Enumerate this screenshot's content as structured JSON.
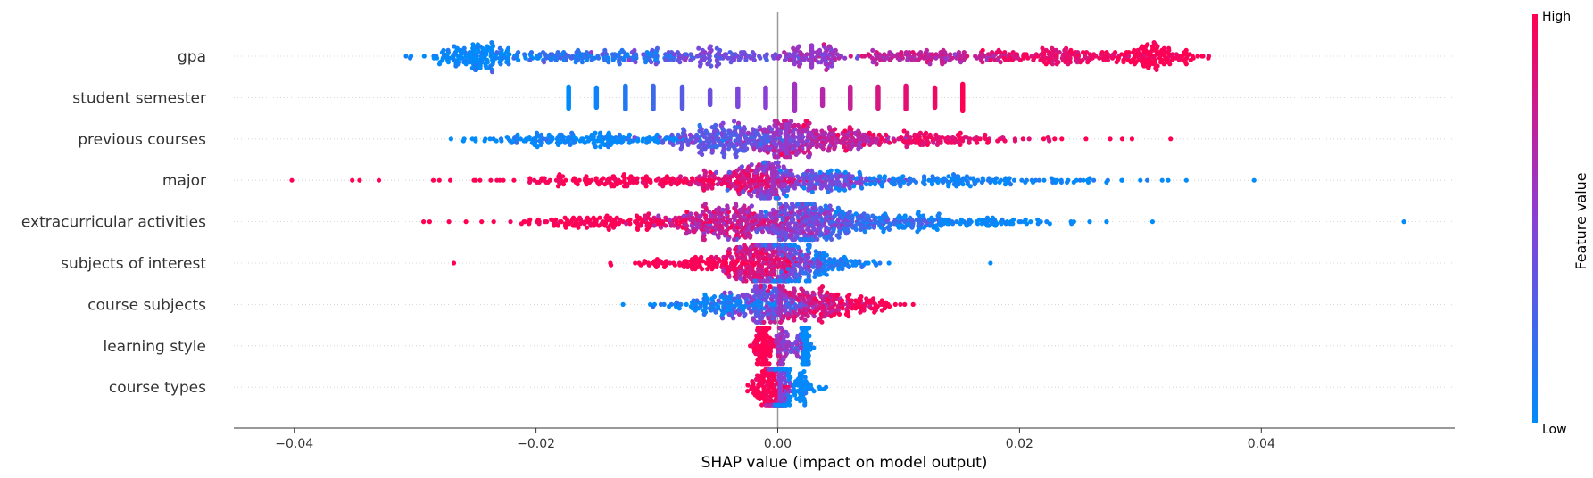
{
  "chart_data": {
    "type": "scatter",
    "subtype": "shap-beeswarm-summary",
    "title": "",
    "xlabel": "SHAP value (impact on model output)",
    "ylabel": "",
    "xlim": [
      -0.045,
      0.056
    ],
    "xticks": [
      -0.04,
      -0.02,
      0.0,
      0.02,
      0.04
    ],
    "xtick_labels": [
      "−0.04",
      "−0.02",
      "0.00",
      "0.02",
      "0.04"
    ],
    "zero_line": 0.0,
    "grid": "horizontal dotted row guides",
    "legend": "colorbar at right",
    "colorbar": {
      "title": "Feature value",
      "high_label": "High",
      "low_label": "Low",
      "low_color": "#008bfb",
      "mid_color": "#8a3fd6",
      "high_color": "#ff0052"
    },
    "features": [
      {
        "name": "gpa",
        "clusters": [
          {
            "x": -0.025,
            "s": 0.0022,
            "n": 160,
            "f": 0.0,
            "fs": 0.06
          },
          {
            "x": -0.015,
            "s": 0.004,
            "n": 140,
            "f": 0.15,
            "fs": 0.08
          },
          {
            "x": -0.005,
            "s": 0.004,
            "n": 120,
            "f": 0.4,
            "fs": 0.08
          },
          {
            "x": 0.003,
            "s": 0.0015,
            "n": 80,
            "f": 0.55,
            "fs": 0.08
          },
          {
            "x": 0.012,
            "s": 0.004,
            "n": 140,
            "f": 0.72,
            "fs": 0.08
          },
          {
            "x": 0.024,
            "s": 0.004,
            "n": 150,
            "f": 0.9,
            "fs": 0.06
          },
          {
            "x": 0.031,
            "s": 0.0018,
            "n": 120,
            "f": 1.0,
            "fs": 0.04
          }
        ],
        "outliers": [
          {
            "x": -0.0282,
            "f": 0.0
          },
          {
            "x": 0.0338,
            "f": 1.0
          }
        ],
        "vlines": [
          {
            "x": 0.0028,
            "f": 0.55,
            "h": 0.6
          }
        ]
      },
      {
        "name": "student semester",
        "vlines": [
          {
            "x": -0.0173,
            "f": 0.0,
            "h": 0.6
          },
          {
            "x": -0.015,
            "f": 0.05,
            "h": 0.55
          },
          {
            "x": -0.0126,
            "f": 0.12,
            "h": 0.65
          },
          {
            "x": -0.0103,
            "f": 0.22,
            "h": 0.65
          },
          {
            "x": -0.0079,
            "f": 0.32,
            "h": 0.6
          },
          {
            "x": -0.0056,
            "f": 0.4,
            "h": 0.4
          },
          {
            "x": -0.0033,
            "f": 0.45,
            "h": 0.5
          },
          {
            "x": -0.001,
            "f": 0.5,
            "h": 0.55
          },
          {
            "x": 0.0014,
            "f": 0.6,
            "h": 0.75
          },
          {
            "x": 0.0037,
            "f": 0.68,
            "h": 0.45
          },
          {
            "x": 0.006,
            "f": 0.75,
            "h": 0.6
          },
          {
            "x": 0.0083,
            "f": 0.82,
            "h": 0.6
          },
          {
            "x": 0.0106,
            "f": 0.88,
            "h": 0.65
          },
          {
            "x": 0.013,
            "f": 0.94,
            "h": 0.55
          },
          {
            "x": 0.0153,
            "f": 1.0,
            "h": 0.75
          }
        ]
      },
      {
        "name": "previous courses",
        "clusters": [
          {
            "x": -0.015,
            "s": 0.005,
            "n": 180,
            "f": 0.0,
            "fs": 0.08
          },
          {
            "x": -0.004,
            "s": 0.0025,
            "n": 220,
            "f": 0.35,
            "fs": 0.1
          },
          {
            "x": 0.0005,
            "s": 0.0012,
            "n": 120,
            "f": 0.55,
            "fs": 0.1
          },
          {
            "x": 0.005,
            "s": 0.003,
            "n": 180,
            "f": 0.7,
            "fs": 0.08
          },
          {
            "x": 0.013,
            "s": 0.004,
            "n": 120,
            "f": 0.92,
            "fs": 0.06
          }
        ],
        "outliers": [
          {
            "x": -0.026,
            "f": 0.0
          },
          {
            "x": -0.025,
            "f": 0.0
          },
          {
            "x": -0.0238,
            "f": 0.0
          },
          {
            "x": -0.022,
            "f": 0.0
          },
          {
            "x": 0.022,
            "f": 1.0
          },
          {
            "x": 0.0235,
            "f": 1.0
          },
          {
            "x": 0.0255,
            "f": 1.0
          },
          {
            "x": 0.0275,
            "f": 1.0
          },
          {
            "x": 0.0285,
            "f": 1.0
          },
          {
            "x": 0.0293,
            "f": 1.0
          },
          {
            "x": 0.0325,
            "f": 1.0
          }
        ],
        "vlines": [
          {
            "x": 0.0007,
            "f": 0.55,
            "h": 0.8
          }
        ]
      },
      {
        "name": "major",
        "clusters": [
          {
            "x": -0.012,
            "s": 0.006,
            "n": 160,
            "f": 1.0,
            "fs": 0.06
          },
          {
            "x": -0.003,
            "s": 0.0025,
            "n": 140,
            "f": 0.85,
            "fs": 0.1
          },
          {
            "x": -0.0005,
            "s": 0.001,
            "n": 80,
            "f": 0.6,
            "fs": 0.1
          },
          {
            "x": 0.004,
            "s": 0.003,
            "n": 160,
            "f": 0.4,
            "fs": 0.1
          },
          {
            "x": 0.014,
            "s": 0.006,
            "n": 150,
            "f": 0.05,
            "fs": 0.06
          }
        ],
        "outliers": [
          {
            "x": -0.0402,
            "f": 1.0
          },
          {
            "x": -0.0352,
            "f": 1.0
          },
          {
            "x": -0.0346,
            "f": 1.0
          },
          {
            "x": -0.033,
            "f": 1.0
          },
          {
            "x": -0.0285,
            "f": 1.0
          },
          {
            "x": -0.028,
            "f": 1.0
          },
          {
            "x": -0.025,
            "f": 1.0
          },
          {
            "x": -0.023,
            "f": 1.0
          },
          {
            "x": -0.0205,
            "f": 1.0
          },
          {
            "x": 0.0245,
            "f": 0.0
          },
          {
            "x": 0.0258,
            "f": 0.0
          },
          {
            "x": 0.0272,
            "f": 0.0
          },
          {
            "x": 0.0285,
            "f": 0.0
          },
          {
            "x": 0.03,
            "f": 0.0
          },
          {
            "x": 0.0318,
            "f": 0.0
          },
          {
            "x": 0.0323,
            "f": 0.0
          },
          {
            "x": 0.0338,
            "f": 0.0
          },
          {
            "x": 0.0394,
            "f": 0.0
          }
        ],
        "vlines": [
          {
            "x": -0.0004,
            "f": 0.6,
            "h": 0.75
          }
        ]
      },
      {
        "name": "extracurricular activities",
        "clusters": [
          {
            "x": -0.013,
            "s": 0.004,
            "n": 140,
            "f": 1.0,
            "fs": 0.06
          },
          {
            "x": -0.004,
            "s": 0.0025,
            "n": 260,
            "f": 0.75,
            "fs": 0.12
          },
          {
            "x": 0.002,
            "s": 0.002,
            "n": 260,
            "f": 0.45,
            "fs": 0.12
          },
          {
            "x": 0.008,
            "s": 0.003,
            "n": 160,
            "f": 0.2,
            "fs": 0.1
          },
          {
            "x": 0.015,
            "s": 0.004,
            "n": 90,
            "f": 0.02,
            "fs": 0.04
          }
        ],
        "outliers": [
          {
            "x": -0.0293,
            "f": 1.0
          },
          {
            "x": -0.0288,
            "f": 1.0
          },
          {
            "x": -0.0272,
            "f": 1.0
          },
          {
            "x": -0.0258,
            "f": 1.0
          },
          {
            "x": -0.0245,
            "f": 1.0
          },
          {
            "x": -0.0235,
            "f": 1.0
          },
          {
            "x": -0.0212,
            "f": 1.0
          },
          {
            "x": -0.0205,
            "f": 1.0
          },
          {
            "x": -0.0198,
            "f": 1.0
          },
          {
            "x": -0.0185,
            "f": 1.0
          },
          {
            "x": -0.0168,
            "f": 1.0
          },
          {
            "x": -0.0165,
            "f": 1.0
          },
          {
            "x": 0.0185,
            "f": 0.0
          },
          {
            "x": 0.0195,
            "f": 0.0
          },
          {
            "x": 0.0205,
            "f": 0.0
          },
          {
            "x": 0.0215,
            "f": 0.0
          },
          {
            "x": 0.0225,
            "f": 0.0
          },
          {
            "x": 0.0245,
            "f": 0.0
          },
          {
            "x": 0.0258,
            "f": 0.0
          },
          {
            "x": 0.0272,
            "f": 0.0
          },
          {
            "x": 0.031,
            "f": 0.0
          },
          {
            "x": 0.0518,
            "f": 0.0
          }
        ]
      },
      {
        "name": "subjects of interest",
        "clusters": [
          {
            "x": -0.006,
            "s": 0.003,
            "n": 120,
            "f": 1.0,
            "fs": 0.06
          },
          {
            "x": -0.0015,
            "s": 0.0015,
            "n": 200,
            "f": 0.85,
            "fs": 0.1
          },
          {
            "x": 0.001,
            "s": 0.0015,
            "n": 160,
            "f": 0.45,
            "fs": 0.12
          },
          {
            "x": 0.004,
            "s": 0.002,
            "n": 100,
            "f": 0.08,
            "fs": 0.06
          }
        ],
        "outliers": [
          {
            "x": -0.0268,
            "f": 1.0
          },
          {
            "x": -0.0138,
            "f": 1.0
          },
          {
            "x": -0.0118,
            "f": 1.0
          },
          {
            "x": -0.011,
            "f": 1.0
          },
          {
            "x": 0.0075,
            "f": 0.0
          },
          {
            "x": 0.0092,
            "f": 0.0
          },
          {
            "x": 0.0176,
            "f": 0.0
          }
        ]
      },
      {
        "name": "course subjects",
        "clusters": [
          {
            "x": -0.005,
            "s": 0.0025,
            "n": 140,
            "f": 0.05,
            "fs": 0.08
          },
          {
            "x": -0.0005,
            "s": 0.0015,
            "n": 160,
            "f": 0.4,
            "fs": 0.12
          },
          {
            "x": 0.003,
            "s": 0.002,
            "n": 160,
            "f": 0.8,
            "fs": 0.1
          },
          {
            "x": 0.007,
            "s": 0.0015,
            "n": 60,
            "f": 1.0,
            "fs": 0.04
          }
        ],
        "outliers": [
          {
            "x": -0.0128,
            "f": 0.0
          },
          {
            "x": -0.0102,
            "f": 0.0
          },
          {
            "x": -0.009,
            "f": 0.0
          },
          {
            "x": 0.0105,
            "f": 1.0
          },
          {
            "x": 0.0112,
            "f": 1.0
          }
        ],
        "vlines": [
          {
            "x": 0.0002,
            "f": 0.6,
            "h": 0.55
          }
        ]
      },
      {
        "name": "learning style",
        "clusters": [
          {
            "x": -0.0012,
            "s": 0.0004,
            "n": 110,
            "f": 1.0,
            "fs": 0.05
          },
          {
            "x": 0.0003,
            "s": 0.0003,
            "n": 50,
            "f": 0.6,
            "fs": 0.1
          },
          {
            "x": 0.0016,
            "s": 0.0003,
            "n": 30,
            "f": 0.45,
            "fs": 0.1
          },
          {
            "x": 0.0023,
            "s": 0.0002,
            "n": 80,
            "f": 0.0,
            "fs": 0.04
          }
        ],
        "vlines": [
          {
            "x": -0.0012,
            "f": 1.0,
            "h": 0.75
          },
          {
            "x": 0.0023,
            "f": 0.0,
            "h": 0.75
          }
        ]
      },
      {
        "name": "course types",
        "clusters": [
          {
            "x": -0.0008,
            "s": 0.0006,
            "n": 120,
            "f": 1.0,
            "fs": 0.06
          },
          {
            "x": 0.0002,
            "s": 0.0004,
            "n": 110,
            "f": 0.5,
            "fs": 0.12
          },
          {
            "x": 0.0015,
            "s": 0.0008,
            "n": 80,
            "f": 0.02,
            "fs": 0.04
          }
        ],
        "outliers": [
          {
            "x": -0.0025,
            "f": 1.0
          },
          {
            "x": 0.003,
            "f": 0.0
          },
          {
            "x": 0.0035,
            "f": 0.0
          }
        ],
        "vlines": [
          {
            "x": 0.0002,
            "f": 0.5,
            "h": 0.7
          }
        ]
      }
    ]
  }
}
